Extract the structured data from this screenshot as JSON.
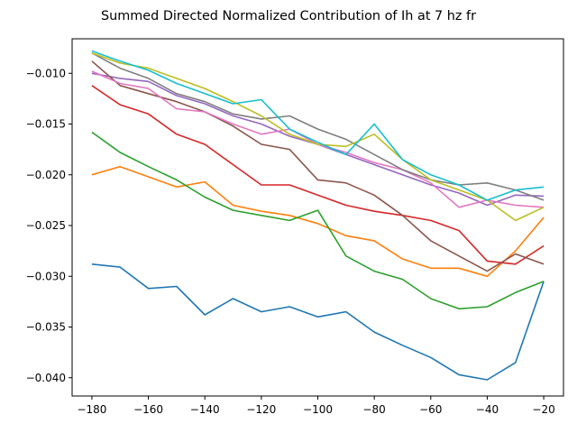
{
  "chart_data": {
    "type": "line",
    "title": "Summed Directed Normalized Contribution of Ih at 7 hz fr",
    "xlabel": "",
    "ylabel": "",
    "xlim": [
      -187,
      -13
    ],
    "ylim": [
      -0.0418,
      -0.0066
    ],
    "x_ticks": [
      -180,
      -160,
      -140,
      -120,
      -100,
      -80,
      -60,
      -40,
      -20
    ],
    "y_ticks": [
      -0.04,
      -0.035,
      -0.03,
      -0.025,
      -0.02,
      -0.015,
      -0.01
    ],
    "x_tick_labels": [
      "−180",
      "−160",
      "−140",
      "−120",
      "−100",
      "−80",
      "−60",
      "−40",
      "−20"
    ],
    "y_tick_labels": [
      "−0.040",
      "−0.035",
      "−0.030",
      "−0.025",
      "−0.020",
      "−0.015",
      "−0.010"
    ],
    "grid": false,
    "x": [
      -180,
      -170,
      -160,
      -150,
      -140,
      -130,
      -120,
      -110,
      -100,
      -90,
      -80,
      -70,
      -60,
      -50,
      -40,
      -30,
      -20
    ],
    "series": [
      {
        "color": "#1f77b4",
        "values": [
          -0.0288,
          -0.0291,
          -0.0312,
          -0.031,
          -0.0338,
          -0.0322,
          -0.0335,
          -0.033,
          -0.034,
          -0.0335,
          -0.0355,
          -0.0368,
          -0.038,
          -0.0397,
          -0.0402,
          -0.0385,
          -0.0305
        ]
      },
      {
        "color": "#ff7f0e",
        "values": [
          -0.02,
          -0.0192,
          -0.0202,
          -0.0212,
          -0.0207,
          -0.023,
          -0.0236,
          -0.024,
          -0.0248,
          -0.026,
          -0.0265,
          -0.0283,
          -0.0292,
          -0.0292,
          -0.03,
          -0.0275,
          -0.0242
        ]
      },
      {
        "color": "#2ca02c",
        "values": [
          -0.0158,
          -0.0178,
          -0.0192,
          -0.0205,
          -0.0222,
          -0.0235,
          -0.024,
          -0.0245,
          -0.0235,
          -0.028,
          -0.0295,
          -0.0303,
          -0.0322,
          -0.0332,
          -0.033,
          -0.0316,
          -0.0305
        ]
      },
      {
        "color": "#d62728",
        "values": [
          -0.0112,
          -0.0131,
          -0.014,
          -0.016,
          -0.017,
          -0.019,
          -0.021,
          -0.021,
          -0.022,
          -0.023,
          -0.0236,
          -0.024,
          -0.0245,
          -0.0255,
          -0.0285,
          -0.0288,
          -0.027
        ]
      },
      {
        "color": "#9467bd",
        "values": [
          -0.01,
          -0.0105,
          -0.0108,
          -0.0122,
          -0.013,
          -0.0142,
          -0.015,
          -0.0162,
          -0.017,
          -0.018,
          -0.019,
          -0.02,
          -0.021,
          -0.0218,
          -0.023,
          -0.022,
          -0.0221
        ]
      },
      {
        "color": "#8c564b",
        "values": [
          -0.0088,
          -0.0112,
          -0.012,
          -0.0128,
          -0.0138,
          -0.0152,
          -0.017,
          -0.0175,
          -0.0205,
          -0.0208,
          -0.022,
          -0.024,
          -0.0265,
          -0.028,
          -0.0295,
          -0.0278,
          -0.0288
        ]
      },
      {
        "color": "#e377c2",
        "values": [
          -0.0098,
          -0.011,
          -0.0115,
          -0.0135,
          -0.0138,
          -0.015,
          -0.016,
          -0.0155,
          -0.017,
          -0.0178,
          -0.0188,
          -0.0195,
          -0.0208,
          -0.0232,
          -0.0225,
          -0.023,
          -0.0232
        ]
      },
      {
        "color": "#7f7f7f",
        "values": [
          -0.008,
          -0.0095,
          -0.0105,
          -0.012,
          -0.0128,
          -0.014,
          -0.0145,
          -0.0142,
          -0.0155,
          -0.0165,
          -0.018,
          -0.0195,
          -0.0205,
          -0.021,
          -0.0208,
          -0.0215,
          -0.0225
        ]
      },
      {
        "color": "#bcbd22",
        "values": [
          -0.008,
          -0.009,
          -0.0095,
          -0.0105,
          -0.0115,
          -0.0128,
          -0.0142,
          -0.016,
          -0.017,
          -0.0172,
          -0.016,
          -0.0185,
          -0.0205,
          -0.0215,
          -0.0225,
          -0.0245,
          -0.0232
        ]
      },
      {
        "color": "#17becf",
        "values": [
          -0.0078,
          -0.0088,
          -0.0097,
          -0.011,
          -0.012,
          -0.013,
          -0.0126,
          -0.0155,
          -0.0168,
          -0.018,
          -0.015,
          -0.0185,
          -0.02,
          -0.021,
          -0.0225,
          -0.0215,
          -0.0212
        ]
      }
    ]
  }
}
